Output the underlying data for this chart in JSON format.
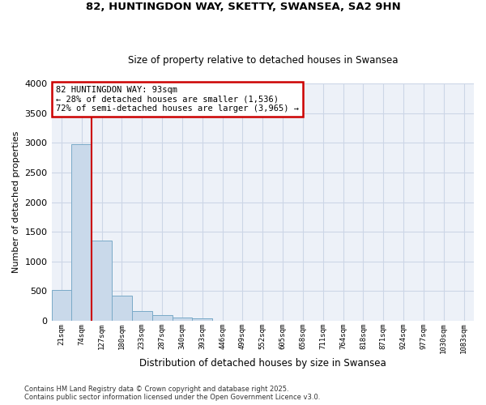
{
  "title_line1": "82, HUNTINGDON WAY, SKETTY, SWANSEA, SA2 9HN",
  "title_line2": "Size of property relative to detached houses in Swansea",
  "xlabel": "Distribution of detached houses by size in Swansea",
  "ylabel": "Number of detached properties",
  "categories": [
    "21sqm",
    "74sqm",
    "127sqm",
    "180sqm",
    "233sqm",
    "287sqm",
    "340sqm",
    "393sqm",
    "446sqm",
    "499sqm",
    "552sqm",
    "605sqm",
    "658sqm",
    "711sqm",
    "764sqm",
    "818sqm",
    "871sqm",
    "924sqm",
    "977sqm",
    "1030sqm",
    "1083sqm"
  ],
  "values": [
    520,
    2980,
    1350,
    420,
    160,
    95,
    60,
    48,
    5,
    3,
    2,
    1,
    0,
    0,
    0,
    0,
    0,
    0,
    0,
    0,
    0
  ],
  "bar_color": "#c9d9ea",
  "bar_edge_color": "#7aaac8",
  "grid_color": "#ccd6e6",
  "background_color": "#edf1f8",
  "red_line_x": 1.5,
  "annotation_text": "82 HUNTINGDON WAY: 93sqm\n← 28% of detached houses are smaller (1,536)\n72% of semi-detached houses are larger (3,965) →",
  "annotation_box_color": "#ffffff",
  "annotation_border_color": "#cc0000",
  "ylim": [
    0,
    4000
  ],
  "yticks": [
    0,
    500,
    1000,
    1500,
    2000,
    2500,
    3000,
    3500,
    4000
  ],
  "footer_line1": "Contains HM Land Registry data © Crown copyright and database right 2025.",
  "footer_line2": "Contains public sector information licensed under the Open Government Licence v3.0."
}
